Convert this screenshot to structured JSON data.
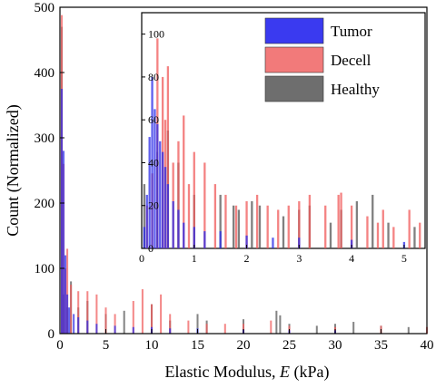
{
  "chart_data": [
    {
      "panel": "main",
      "type": "bar",
      "xlabel_prefix": "Elastic Modulus, ",
      "xlabel_var": "E",
      "xlabel_suffix": " (kPa)",
      "ylabel": "Count (Normalized)",
      "xlim": [
        0,
        40
      ],
      "ylim": [
        0,
        500
      ],
      "xticks": [
        0,
        5,
        10,
        15,
        20,
        25,
        30,
        35,
        40
      ],
      "yticks": [
        0,
        100,
        200,
        300,
        400,
        500
      ],
      "bin_width": 0.2,
      "series": [
        {
          "name": "Healthy",
          "color": "#555555",
          "points": [
            [
              0.2,
              470
            ],
            [
              0.4,
              60
            ],
            [
              0.8,
              40
            ],
            [
              1.2,
              80
            ],
            [
              2,
              40
            ],
            [
              3,
              50
            ],
            [
              5,
              30
            ],
            [
              7,
              35
            ],
            [
              10,
              45
            ],
            [
              12,
              20
            ],
            [
              15,
              30
            ],
            [
              16,
              20
            ],
            [
              20,
              22
            ],
            [
              23.6,
              35
            ],
            [
              24,
              28
            ],
            [
              25,
              15
            ],
            [
              28,
              12
            ],
            [
              30,
              15
            ],
            [
              32,
              18
            ],
            [
              35,
              12
            ],
            [
              38,
              10
            ]
          ]
        },
        {
          "name": "Decell",
          "color": "#f05a5a",
          "points": [
            [
              0.2,
              488
            ],
            [
              0.4,
              260
            ],
            [
              0.6,
              100
            ],
            [
              0.8,
              130
            ],
            [
              1.2,
              75
            ],
            [
              2,
              65
            ],
            [
              3,
              65
            ],
            [
              4,
              60
            ],
            [
              5,
              40
            ],
            [
              6,
              30
            ],
            [
              8,
              50
            ],
            [
              9,
              68
            ],
            [
              10,
              45
            ],
            [
              11,
              60
            ],
            [
              12,
              30
            ],
            [
              14,
              20
            ],
            [
              16,
              15
            ],
            [
              18,
              15
            ],
            [
              20,
              15
            ],
            [
              23,
              20
            ],
            [
              25,
              12
            ],
            [
              30,
              10
            ],
            [
              35,
              12
            ],
            [
              40,
              10
            ]
          ]
        },
        {
          "name": "Tumor",
          "color": "#2a2ae8",
          "points": [
            [
              0.2,
              375
            ],
            [
              0.4,
              280
            ],
            [
              0.6,
              120
            ],
            [
              0.8,
              60
            ],
            [
              1.0,
              40
            ],
            [
              1.5,
              30
            ],
            [
              2,
              25
            ],
            [
              3,
              20
            ],
            [
              4,
              15
            ],
            [
              6,
              12
            ],
            [
              8,
              10
            ],
            [
              10,
              10
            ],
            [
              12,
              8
            ],
            [
              15,
              8
            ],
            [
              20,
              6
            ],
            [
              25,
              5
            ],
            [
              30,
              5
            ]
          ]
        }
      ]
    },
    {
      "panel": "inset",
      "type": "bar",
      "xlim": [
        0,
        5.4
      ],
      "ylim": [
        0,
        110
      ],
      "xticks": [
        0,
        1,
        2,
        3,
        4,
        5
      ],
      "yticks": [
        0,
        20,
        40,
        60,
        80,
        100
      ],
      "bin_width": 0.04,
      "series": [
        {
          "name": "Healthy",
          "color": "#555555",
          "points": [
            [
              0.05,
              30
            ],
            [
              0.3,
              45
            ],
            [
              0.5,
              55
            ],
            [
              0.7,
              40
            ],
            [
              1.0,
              25
            ],
            [
              1.5,
              25
            ],
            [
              1.75,
              20
            ],
            [
              1.85,
              18
            ],
            [
              2.1,
              22
            ],
            [
              2.25,
              20
            ],
            [
              2.7,
              15
            ],
            [
              3.0,
              18
            ],
            [
              3.2,
              20
            ],
            [
              3.6,
              12
            ],
            [
              3.8,
              18
            ],
            [
              4.1,
              22
            ],
            [
              4.4,
              25
            ],
            [
              4.7,
              12
            ],
            [
              5.2,
              10
            ]
          ]
        },
        {
          "name": "Decell",
          "color": "#f05a5a",
          "points": [
            [
              0.1,
              20
            ],
            [
              0.2,
              35
            ],
            [
              0.3,
              98
            ],
            [
              0.4,
              80
            ],
            [
              0.45,
              60
            ],
            [
              0.5,
              85
            ],
            [
              0.6,
              40
            ],
            [
              0.7,
              50
            ],
            [
              0.8,
              62
            ],
            [
              0.9,
              30
            ],
            [
              1.0,
              45
            ],
            [
              1.2,
              40
            ],
            [
              1.4,
              30
            ],
            [
              1.6,
              25
            ],
            [
              1.8,
              20
            ],
            [
              2.0,
              22
            ],
            [
              2.2,
              25
            ],
            [
              2.4,
              20
            ],
            [
              2.6,
              18
            ],
            [
              2.8,
              20
            ],
            [
              3.0,
              22
            ],
            [
              3.2,
              25
            ],
            [
              3.5,
              20
            ],
            [
              3.75,
              25
            ],
            [
              3.8,
              26
            ],
            [
              4.0,
              20
            ],
            [
              4.3,
              15
            ],
            [
              4.5,
              12
            ],
            [
              4.6,
              18
            ],
            [
              4.8,
              10
            ],
            [
              5.1,
              18
            ],
            [
              5.3,
              12
            ]
          ]
        },
        {
          "name": "Tumor",
          "color": "#2a2ae8",
          "points": [
            [
              0.05,
              10
            ],
            [
              0.1,
              25
            ],
            [
              0.15,
              52
            ],
            [
              0.2,
              80
            ],
            [
              0.25,
              65
            ],
            [
              0.3,
              58
            ],
            [
              0.35,
              50
            ],
            [
              0.4,
              45
            ],
            [
              0.45,
              38
            ],
            [
              0.5,
              30
            ],
            [
              0.6,
              22
            ],
            [
              0.7,
              18
            ],
            [
              0.8,
              12
            ],
            [
              1.0,
              10
            ],
            [
              1.2,
              8
            ],
            [
              1.5,
              8
            ],
            [
              2.0,
              6
            ],
            [
              2.5,
              5
            ],
            [
              3.0,
              5
            ],
            [
              4.0,
              4
            ],
            [
              5.0,
              3
            ]
          ]
        }
      ],
      "legend": {
        "position": "top-right",
        "items": [
          {
            "label": "Tumor",
            "color": "#3a3af0"
          },
          {
            "label": "Decell",
            "color": "#f27a7a"
          },
          {
            "label": "Healthy",
            "color": "#6e6e6e"
          }
        ]
      }
    }
  ]
}
